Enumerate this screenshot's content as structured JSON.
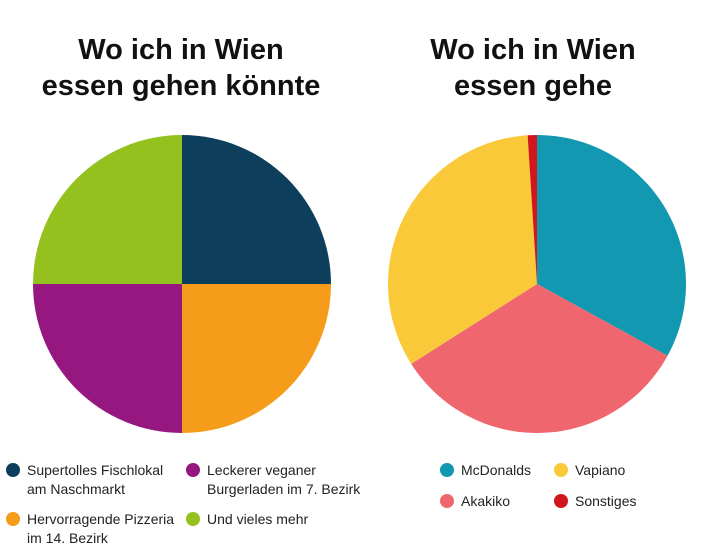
{
  "charts": [
    {
      "title_lines": [
        "Wo ich in Wien",
        "essen gehen könnte"
      ],
      "legend": [
        {
          "lines": [
            "Supertolles Fischlokal",
            "am Naschmarkt"
          ],
          "color": "#0d3f5c"
        },
        {
          "lines": [
            "Leckerer veganer",
            "Burgerladen im 7. Bezirk"
          ],
          "color": "#96177f"
        },
        {
          "lines": [
            "Hervorragende Pizzeria",
            "im 14. Bezirk"
          ],
          "color": "#f59c1a"
        },
        {
          "lines": [
            "Und vieles mehr"
          ],
          "color": "#95c11f"
        }
      ]
    },
    {
      "title_lines": [
        "Wo ich in Wien",
        "essen gehe"
      ],
      "legend": [
        {
          "lines": [
            "McDonalds"
          ],
          "color": "#1398b1"
        },
        {
          "lines": [
            "Vapiano"
          ],
          "color": "#f9c93a"
        },
        {
          "lines": [
            "Akakiko"
          ],
          "color": "#f0666e"
        },
        {
          "lines": [
            "Sonstiges"
          ],
          "color": "#d2161d"
        }
      ]
    }
  ],
  "chart_data": [
    {
      "type": "pie",
      "title": "Wo ich in Wien essen gehen könnte",
      "categories": [
        "Supertolles Fischlokal am Naschmarkt",
        "Hervorragende Pizzeria im 14. Bezirk",
        "Leckerer veganer Burgerladen im 7. Bezirk",
        "Und vieles mehr"
      ],
      "values": [
        25,
        25,
        25,
        25
      ],
      "colors": [
        "#0d3f5c",
        "#f59c1a",
        "#96177f",
        "#95c11f"
      ],
      "legend_position": "bottom"
    },
    {
      "type": "pie",
      "title": "Wo ich in Wien essen gehe",
      "categories": [
        "McDonalds",
        "Akakiko",
        "Vapiano",
        "Sonstiges"
      ],
      "values": [
        33,
        33,
        33,
        1
      ],
      "colors": [
        "#1398b1",
        "#f0666e",
        "#f9c93a",
        "#d2161d"
      ],
      "legend_position": "bottom"
    }
  ]
}
